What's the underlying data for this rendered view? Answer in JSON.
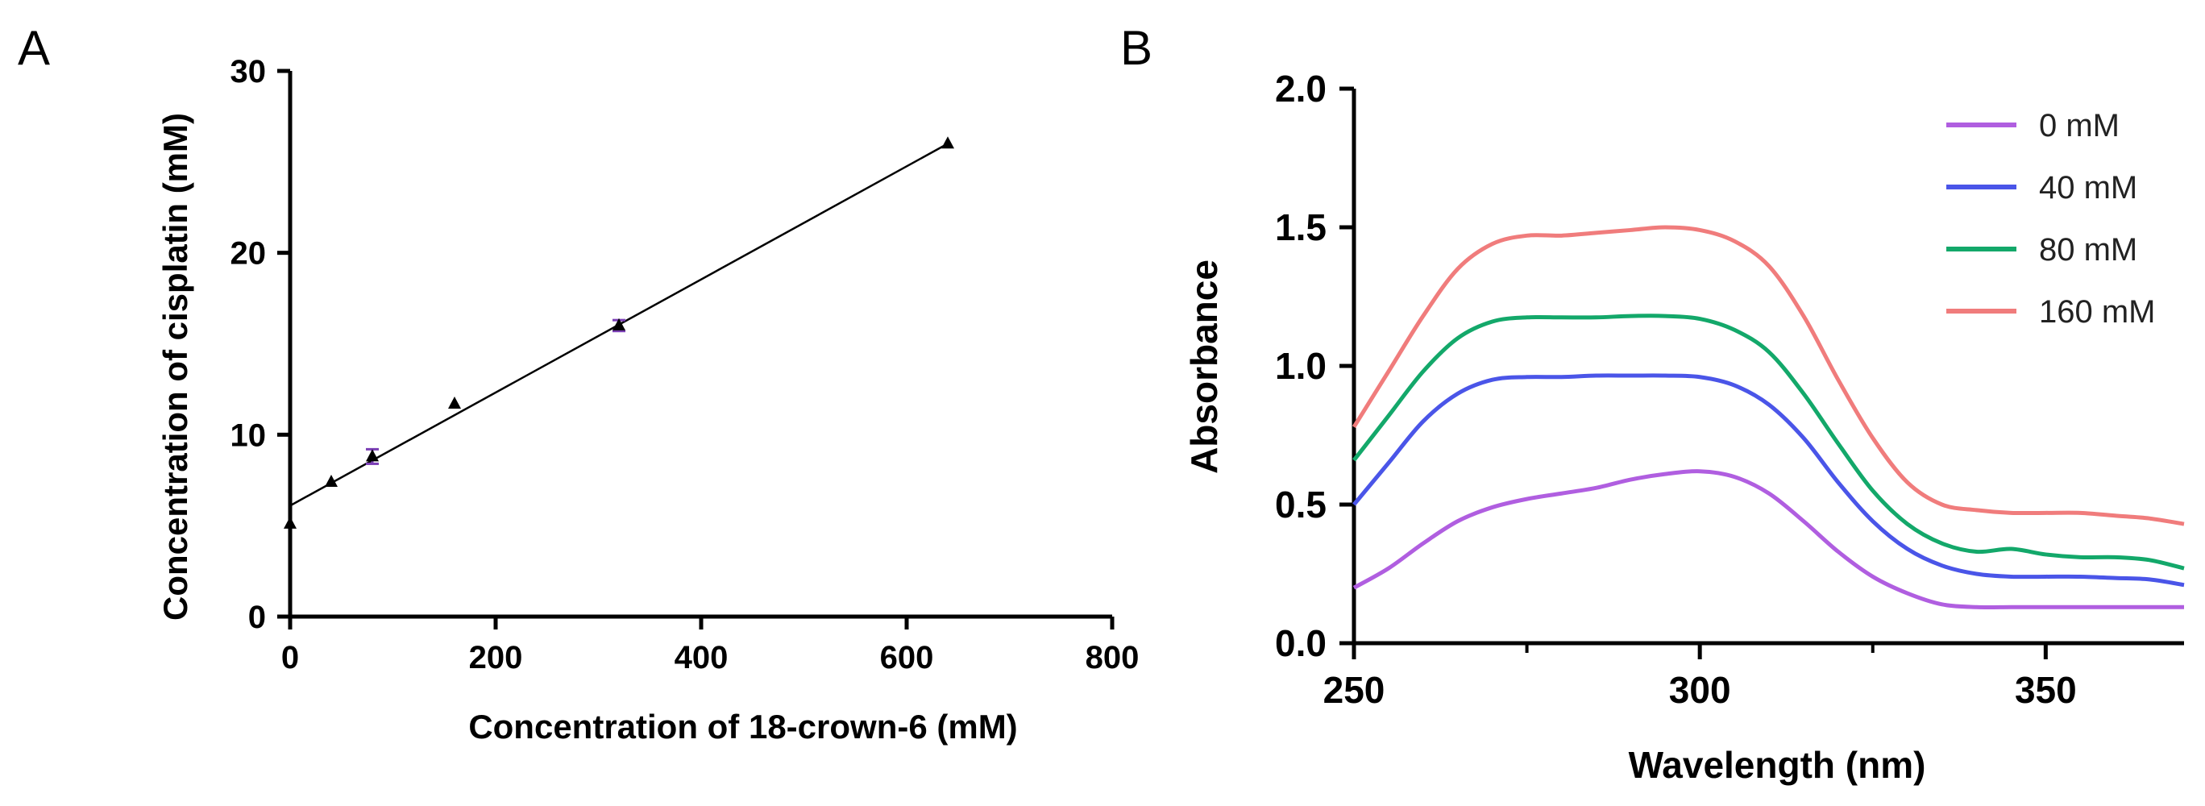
{
  "panel_labels": {
    "a": "A",
    "b": "B"
  },
  "chart_data": [
    {
      "type": "scatter",
      "title": "",
      "xlabel": "Concentration of 18-crown-6 (mM)",
      "ylabel": "Concentration of cisplatin (mM)",
      "xlim": [
        0,
        800
      ],
      "ylim": [
        0,
        30
      ],
      "xticks": [
        0,
        200,
        400,
        600,
        800
      ],
      "yticks": [
        0,
        10,
        20,
        30
      ],
      "xtick_labels": [
        "0",
        "200",
        "400",
        "600",
        "800"
      ],
      "ytick_labels": [
        "0",
        "10",
        "20",
        "30"
      ],
      "grid": false,
      "series": [
        {
          "name": "cisplatin",
          "color": "#000000",
          "x": [
            0,
            40,
            80,
            160,
            320,
            640
          ],
          "y": [
            5.1,
            7.4,
            8.8,
            11.7,
            16.0,
            26.0
          ],
          "error": [
            0,
            0,
            0.4,
            0,
            0.3,
            0
          ],
          "error_color": "#7b3fb5"
        }
      ],
      "fit_line": {
        "x": [
          0,
          640
        ],
        "y": [
          6.1,
          26.0
        ]
      }
    },
    {
      "type": "line",
      "title": "",
      "xlabel": "Wavelength (nm)",
      "ylabel": "Absorbance",
      "xlim": [
        250,
        370
      ],
      "ylim": [
        0,
        2.0
      ],
      "xticks": [
        250,
        300,
        350
      ],
      "xtick_labels": [
        "250",
        "300",
        "350"
      ],
      "x_minor_ticks": [
        275,
        325
      ],
      "yticks": [
        0.0,
        0.5,
        1.0,
        1.5,
        2.0
      ],
      "ytick_labels": [
        "0.0",
        "0.5",
        "1.0",
        "1.5",
        "2.0"
      ],
      "grid": false,
      "legend_position": "top-right",
      "x": [
        250,
        255,
        260,
        265,
        270,
        275,
        280,
        285,
        290,
        295,
        300,
        305,
        310,
        315,
        320,
        325,
        330,
        335,
        340,
        345,
        350,
        355,
        360,
        365,
        370
      ],
      "series": [
        {
          "name": "0 mM",
          "color": "#b05ee0",
          "values": [
            0.2,
            0.27,
            0.36,
            0.44,
            0.49,
            0.52,
            0.54,
            0.56,
            0.59,
            0.61,
            0.62,
            0.6,
            0.54,
            0.44,
            0.33,
            0.24,
            0.18,
            0.14,
            0.13,
            0.13,
            0.13,
            0.13,
            0.13,
            0.13,
            0.13
          ]
        },
        {
          "name": "40 mM",
          "color": "#4a55e8",
          "values": [
            0.5,
            0.65,
            0.8,
            0.9,
            0.95,
            0.96,
            0.96,
            0.965,
            0.965,
            0.965,
            0.96,
            0.93,
            0.86,
            0.74,
            0.58,
            0.44,
            0.34,
            0.28,
            0.25,
            0.24,
            0.24,
            0.24,
            0.235,
            0.23,
            0.21
          ]
        },
        {
          "name": "80 mM",
          "color": "#13a86a",
          "values": [
            0.66,
            0.82,
            0.98,
            1.1,
            1.16,
            1.175,
            1.175,
            1.175,
            1.18,
            1.18,
            1.17,
            1.13,
            1.05,
            0.9,
            0.72,
            0.55,
            0.43,
            0.36,
            0.33,
            0.34,
            0.32,
            0.31,
            0.31,
            0.3,
            0.27
          ]
        },
        {
          "name": "160 mM",
          "color": "#f07c7c",
          "values": [
            0.78,
            0.98,
            1.18,
            1.35,
            1.44,
            1.47,
            1.47,
            1.48,
            1.49,
            1.5,
            1.49,
            1.45,
            1.36,
            1.18,
            0.95,
            0.74,
            0.58,
            0.5,
            0.48,
            0.47,
            0.47,
            0.47,
            0.46,
            0.45,
            0.43
          ]
        }
      ]
    }
  ]
}
